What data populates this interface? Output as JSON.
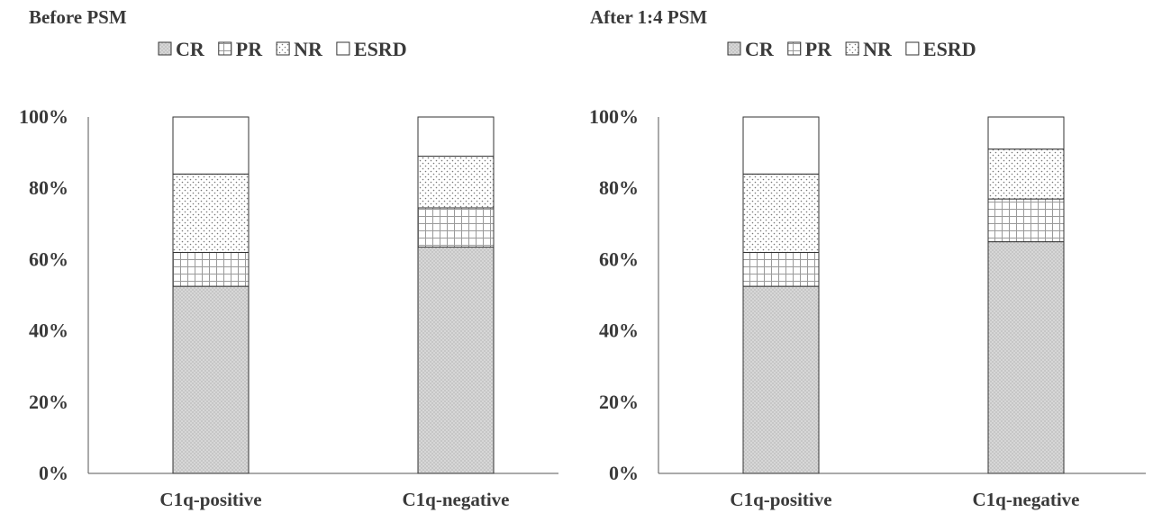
{
  "chart_data": [
    {
      "type": "bar",
      "stacked": true,
      "title": "Before PSM",
      "categories": [
        "C1q-positive",
        "C1q-negative"
      ],
      "series": [
        {
          "name": "CR",
          "values": [
            52.5,
            63.5
          ]
        },
        {
          "name": "PR",
          "values": [
            9.5,
            11.0
          ]
        },
        {
          "name": "NR",
          "values": [
            22.0,
            14.5
          ]
        },
        {
          "name": "ESRD",
          "values": [
            16.0,
            11.0
          ]
        }
      ],
      "ylim": [
        0,
        100
      ],
      "yticks": [
        "0%",
        "20%",
        "40%",
        "60%",
        "80%",
        "100%"
      ],
      "legend_position": "top",
      "grid": false
    },
    {
      "type": "bar",
      "stacked": true,
      "title": "After 1:4 PSM",
      "categories": [
        "C1q-positive",
        "C1q-negative"
      ],
      "series": [
        {
          "name": "CR",
          "values": [
            52.5,
            65.0
          ]
        },
        {
          "name": "PR",
          "values": [
            9.5,
            12.0
          ]
        },
        {
          "name": "NR",
          "values": [
            22.0,
            14.0
          ]
        },
        {
          "name": "ESRD",
          "values": [
            16.0,
            9.0
          ]
        }
      ],
      "ylim": [
        0,
        100
      ],
      "yticks": [
        "0%",
        "20%",
        "40%",
        "60%",
        "80%",
        "100%"
      ],
      "legend_position": "top",
      "grid": false
    }
  ]
}
